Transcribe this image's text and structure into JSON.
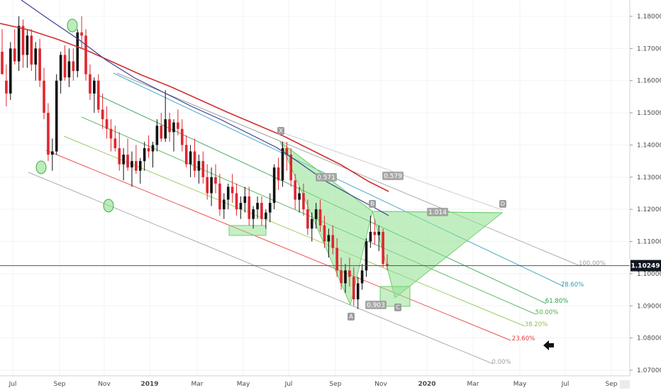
{
  "chart_data": {
    "type": "candlestick",
    "instrument_last_price": "1.10249",
    "x_ticks": [
      "Jul",
      "Sep",
      "Nov",
      "2019",
      "Mar",
      "May",
      "Jul",
      "Sep",
      "Nov",
      "2020",
      "Mar",
      "May",
      "Jul",
      "Sep"
    ],
    "y_ticks": [
      "1.18000",
      "1.17000",
      "1.16000",
      "1.15000",
      "1.14000",
      "1.13000",
      "1.12000",
      "1.11000",
      "1.10000",
      "1.09000",
      "1.08000",
      "1.07000"
    ],
    "ylim": [
      1.0695,
      1.1852
    ],
    "fib_levels": [
      {
        "label": "100.00%",
        "color": "#9e9e9e"
      },
      {
        "label": "78.60%",
        "color": "#2b9bb8"
      },
      {
        "label": "61.80%",
        "color": "#2e9e4f"
      },
      {
        "label": "50.00%",
        "color": "#4caf50"
      },
      {
        "label": "38.20%",
        "color": "#8bc34a"
      },
      {
        "label": "23.60%",
        "color": "#e53935"
      },
      {
        "label": "0.00%",
        "color": "#9e9e9e"
      }
    ],
    "pattern_points": [
      "X",
      "A",
      "B",
      "C",
      "D"
    ],
    "ratios": [
      "0.571",
      "0.579",
      "1.014",
      "0.903"
    ],
    "ma_series": [
      {
        "color": "#d32f2f"
      },
      {
        "color": "#3f3f8f"
      }
    ],
    "candles": [
      [
        1.169,
        1.176,
        1.162,
        1.162
      ],
      [
        1.16,
        1.165,
        1.152,
        1.156
      ],
      [
        1.156,
        1.172,
        1.154,
        1.17
      ],
      [
        1.17,
        1.176,
        1.165,
        1.166
      ],
      [
        1.166,
        1.18,
        1.163,
        1.177
      ],
      [
        1.177,
        1.179,
        1.164,
        1.168
      ],
      [
        1.168,
        1.176,
        1.164,
        1.174
      ],
      [
        1.174,
        1.176,
        1.163,
        1.165
      ],
      [
        1.165,
        1.172,
        1.16,
        1.17
      ],
      [
        1.17,
        1.173,
        1.158,
        1.16
      ],
      [
        1.16,
        1.164,
        1.148,
        1.15
      ],
      [
        1.15,
        1.153,
        1.135,
        1.137
      ],
      [
        1.137,
        1.142,
        1.132,
        1.138
      ],
      [
        1.138,
        1.162,
        1.137,
        1.16
      ],
      [
        1.16,
        1.169,
        1.156,
        1.168
      ],
      [
        1.168,
        1.171,
        1.16,
        1.161
      ],
      [
        1.161,
        1.17,
        1.158,
        1.166
      ],
      [
        1.166,
        1.17,
        1.16,
        1.163
      ],
      [
        1.163,
        1.176,
        1.161,
        1.175
      ],
      [
        1.175,
        1.18,
        1.17,
        1.174
      ],
      [
        1.174,
        1.176,
        1.16,
        1.162
      ],
      [
        1.162,
        1.165,
        1.154,
        1.156
      ],
      [
        1.156,
        1.161,
        1.15,
        1.16
      ],
      [
        1.16,
        1.162,
        1.15,
        1.151
      ],
      [
        1.151,
        1.156,
        1.145,
        1.148
      ],
      [
        1.148,
        1.152,
        1.142,
        1.145
      ],
      [
        1.145,
        1.148,
        1.138,
        1.142
      ],
      [
        1.142,
        1.146,
        1.138,
        1.139
      ],
      [
        1.139,
        1.144,
        1.132,
        1.134
      ],
      [
        1.134,
        1.139,
        1.129,
        1.137
      ],
      [
        1.137,
        1.142,
        1.132,
        1.133
      ],
      [
        1.133,
        1.138,
        1.127,
        1.135
      ],
      [
        1.135,
        1.14,
        1.131,
        1.132
      ],
      [
        1.132,
        1.136,
        1.128,
        1.135
      ],
      [
        1.135,
        1.141,
        1.132,
        1.139
      ],
      [
        1.139,
        1.143,
        1.136,
        1.138
      ],
      [
        1.138,
        1.141,
        1.133,
        1.14
      ],
      [
        1.14,
        1.148,
        1.138,
        1.146
      ],
      [
        1.146,
        1.15,
        1.141,
        1.142
      ],
      [
        1.142,
        1.157,
        1.141,
        1.148
      ],
      [
        1.148,
        1.15,
        1.141,
        1.144
      ],
      [
        1.144,
        1.148,
        1.138,
        1.147
      ],
      [
        1.147,
        1.151,
        1.143,
        1.145
      ],
      [
        1.145,
        1.148,
        1.138,
        1.14
      ],
      [
        1.14,
        1.143,
        1.133,
        1.134
      ],
      [
        1.134,
        1.14,
        1.13,
        1.138
      ],
      [
        1.138,
        1.142,
        1.13,
        1.132
      ],
      [
        1.132,
        1.137,
        1.128,
        1.135
      ],
      [
        1.135,
        1.138,
        1.128,
        1.13
      ],
      [
        1.13,
        1.134,
        1.123,
        1.125
      ],
      [
        1.125,
        1.133,
        1.121,
        1.13
      ],
      [
        1.13,
        1.134,
        1.125,
        1.128
      ],
      [
        1.128,
        1.131,
        1.118,
        1.12
      ],
      [
        1.12,
        1.125,
        1.117,
        1.123
      ],
      [
        1.123,
        1.128,
        1.12,
        1.127
      ],
      [
        1.127,
        1.131,
        1.122,
        1.125
      ],
      [
        1.125,
        1.128,
        1.118,
        1.12
      ],
      [
        1.12,
        1.124,
        1.117,
        1.122
      ],
      [
        1.122,
        1.127,
        1.119,
        1.124
      ],
      [
        1.124,
        1.127,
        1.115,
        1.117
      ],
      [
        1.117,
        1.121,
        1.114,
        1.12
      ],
      [
        1.12,
        1.124,
        1.117,
        1.122
      ],
      [
        1.122,
        1.124,
        1.115,
        1.117
      ],
      [
        1.117,
        1.12,
        1.114,
        1.119
      ],
      [
        1.119,
        1.125,
        1.116,
        1.122
      ],
      [
        1.122,
        1.134,
        1.12,
        1.133
      ],
      [
        1.133,
        1.136,
        1.126,
        1.129
      ],
      [
        1.129,
        1.141,
        1.127,
        1.139
      ],
      [
        1.139,
        1.141,
        1.132,
        1.137
      ],
      [
        1.137,
        1.139,
        1.127,
        1.129
      ],
      [
        1.129,
        1.131,
        1.12,
        1.123
      ],
      [
        1.123,
        1.127,
        1.119,
        1.125
      ],
      [
        1.125,
        1.128,
        1.118,
        1.12
      ],
      [
        1.12,
        1.123,
        1.112,
        1.114
      ],
      [
        1.114,
        1.119,
        1.11,
        1.117
      ],
      [
        1.117,
        1.122,
        1.114,
        1.12
      ],
      [
        1.12,
        1.123,
        1.113,
        1.115
      ],
      [
        1.115,
        1.118,
        1.108,
        1.11
      ],
      [
        1.11,
        1.114,
        1.105,
        1.112
      ],
      [
        1.112,
        1.115,
        1.106,
        1.108
      ],
      [
        1.108,
        1.111,
        1.099,
        1.101
      ],
      [
        1.101,
        1.105,
        1.095,
        1.097
      ],
      [
        1.097,
        1.103,
        1.094,
        1.101
      ],
      [
        1.101,
        1.105,
        1.096,
        1.099
      ],
      [
        1.099,
        1.102,
        1.09,
        1.092
      ],
      [
        1.092,
        1.099,
        1.089,
        1.097
      ],
      [
        1.097,
        1.103,
        1.095,
        1.101
      ],
      [
        1.101,
        1.111,
        1.099,
        1.11
      ],
      [
        1.11,
        1.118,
        1.108,
        1.113
      ],
      [
        1.113,
        1.117,
        1.109,
        1.112
      ],
      [
        1.112,
        1.115,
        1.107,
        1.113
      ],
      [
        1.113,
        1.114,
        1.102,
        1.103
      ],
      [
        1.103,
        1.106,
        1.101,
        1.1025
      ]
    ]
  }
}
